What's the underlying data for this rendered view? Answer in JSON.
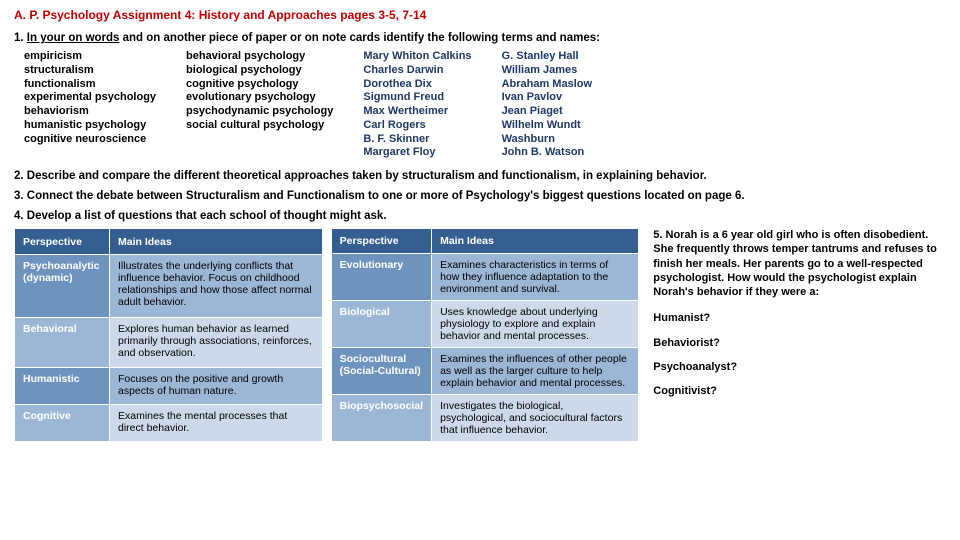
{
  "title": "A. P. Psychology Assignment 4: History and Approaches  pages 3-5, 7-14",
  "q1_pre": "1.  ",
  "q1_u": "In your on words",
  "q1_post": " and on another piece of paper or on note cards identify the following terms and names:",
  "terms": {
    "c1": [
      "empiricism",
      "structuralism",
      "functionalism",
      "experimental psychology",
      "behaviorism",
      "humanistic psychology",
      "cognitive neuroscience"
    ],
    "c2": [
      "behavioral psychology",
      "biological psychology",
      "cognitive psychology",
      "evolutionary psychology",
      "psychodynamic psychology",
      "social cultural psychology"
    ],
    "c3": [
      "Mary Whiton Calkins",
      "Charles Darwin",
      "Dorothea Dix",
      "Sigmund Freud",
      "Max Wertheimer",
      "Carl Rogers",
      "B. F. Skinner",
      "Margaret Floy"
    ],
    "c4": [
      "G. Stanley Hall",
      "William James",
      "Abraham Maslow",
      "Ivan Pavlov",
      "Jean Piaget",
      "Wilhelm Wundt",
      "Washburn",
      "John B. Watson"
    ]
  },
  "q2": "2.  Describe and compare the different theoretical approaches taken by structuralism and functionalism, in explaining behavior.",
  "q3": "3.  Connect the debate between Structuralism and Functionalism to one or more of Psychology's biggest questions located on page 6.",
  "q4": "4.  Develop a list of questions that each school of thought might ask.",
  "headers": {
    "p": "Perspective",
    "m": "Main Ideas"
  },
  "t1": [
    {
      "p": "Psychoanalytic (dynamic)",
      "m": "Illustrates the underlying conflicts that influence behavior. Focus on childhood relationships and how those affect normal adult behavior."
    },
    {
      "p": "Behavioral",
      "m": "Explores human behavior as learned primarily through associations, reinforces, and observation."
    },
    {
      "p": "Humanistic",
      "m": "Focuses on the positive and growth aspects of human nature."
    },
    {
      "p": "Cognitive",
      "m": "Examines the mental processes that direct behavior."
    }
  ],
  "t2": [
    {
      "p": "Evolutionary",
      "m": "Examines characteristics in terms of how they influence adaptation to the environment and survival."
    },
    {
      "p": "Biological",
      "m": "Uses knowledge about underlying physiology to explore and explain behavior and mental processes."
    },
    {
      "p": "Sociocultural (Social-Cultural)",
      "m": "Examines the influences of other people as well as the larger culture to help explain behavior and mental processes."
    },
    {
      "p": "Biopsychosocial",
      "m": "Investigates the biological, psychological, and sociocultural factors that influence behavior."
    }
  ],
  "scenario": {
    "intro": "5. Norah is a 6 year old girl who is often disobedient.  She frequently throws temper tantrums and refuses to finish her meals.  Her parents go to a well-respected psychologist.  How would the psychologist explain Norah's behavior if they were a:",
    "a1": "Humanist?",
    "a2": "Behaviorist?",
    "a3": "Psychoanalyst?",
    "a4": "Cognitivist?"
  }
}
